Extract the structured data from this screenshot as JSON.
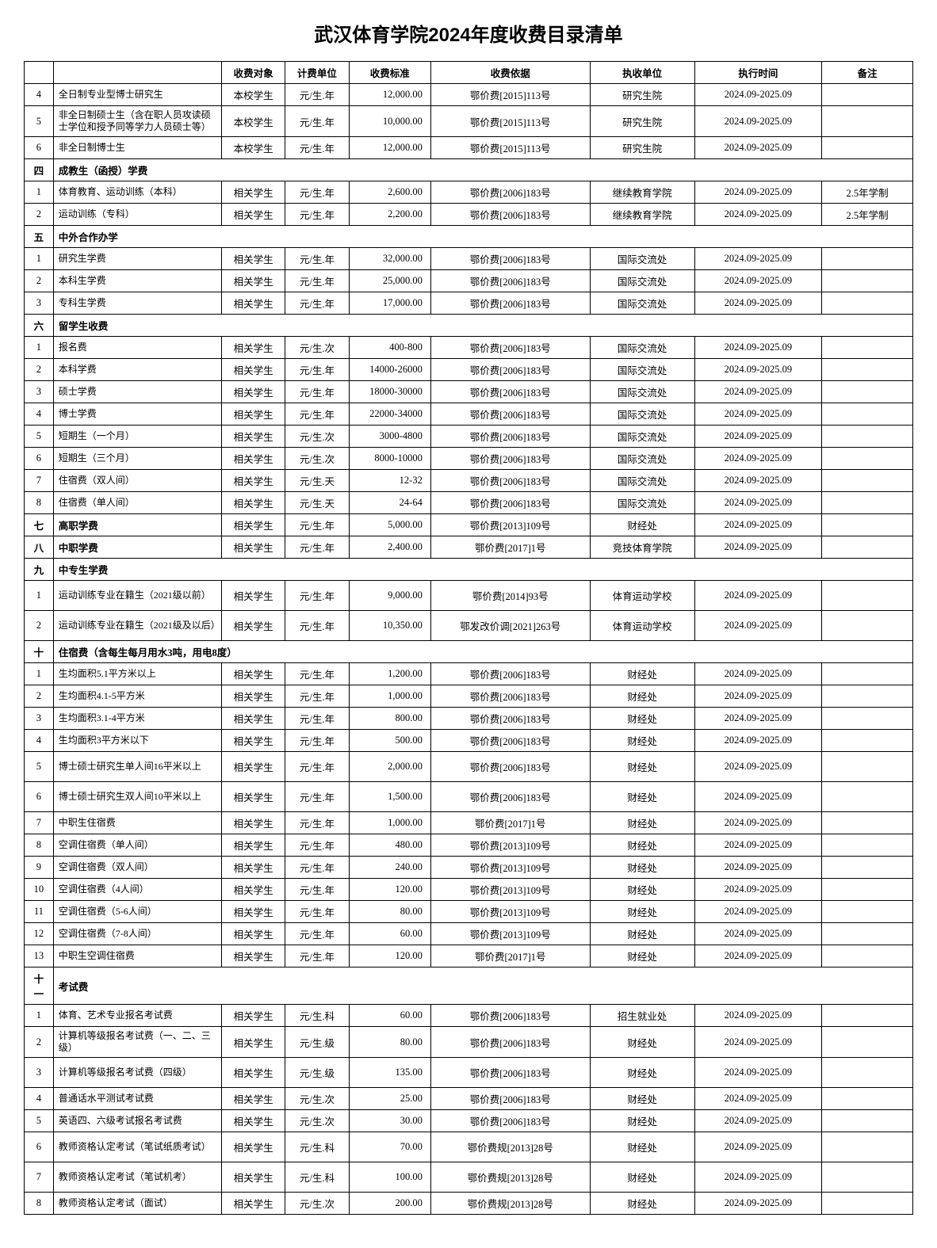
{
  "title": "武汉体育学院2024年度收费目录清单",
  "headers": {
    "idx": "",
    "name": "",
    "obj": "收费对象",
    "unit": "计费单位",
    "price": "收费标准",
    "basis": "收费依据",
    "dept": "执收单位",
    "time": "执行时间",
    "note": "备注"
  },
  "rows": [
    {
      "type": "data",
      "idx": "4",
      "name": "全日制专业型博士研究生",
      "obj": "本校学生",
      "unit": "元/生.年",
      "price": "12,000.00",
      "basis": "鄂价费[2015]113号",
      "dept": "研究生院",
      "time": "2024.09-2025.09",
      "note": ""
    },
    {
      "type": "data",
      "idx": "5",
      "name": "非全日制硕士生（含在职人员攻读硕士学位和授予同等学力人员硕士等）",
      "obj": "本校学生",
      "unit": "元/生.年",
      "price": "10,000.00",
      "basis": "鄂价费[2015]113号",
      "dept": "研究生院",
      "time": "2024.09-2025.09",
      "note": "",
      "tall": true
    },
    {
      "type": "data",
      "idx": "6",
      "name": "非全日制博士生",
      "obj": "本校学生",
      "unit": "元/生.年",
      "price": "12,000.00",
      "basis": "鄂价费[2015]113号",
      "dept": "研究生院",
      "time": "2024.09-2025.09",
      "note": ""
    },
    {
      "type": "section",
      "idx": "四",
      "label": "成教生（函授）学费"
    },
    {
      "type": "data",
      "idx": "1",
      "name": "体育教育、运动训练（本科）",
      "obj": "相关学生",
      "unit": "元/生.年",
      "price": "2,600.00",
      "basis": "鄂价费[2006]183号",
      "dept": "继续教育学院",
      "time": "2024.09-2025.09",
      "note": "2.5年学制"
    },
    {
      "type": "data",
      "idx": "2",
      "name": "运动训练（专科）",
      "obj": "相关学生",
      "unit": "元/生.年",
      "price": "2,200.00",
      "basis": "鄂价费[2006]183号",
      "dept": "继续教育学院",
      "time": "2024.09-2025.09",
      "note": "2.5年学制"
    },
    {
      "type": "section",
      "idx": "五",
      "label": "中外合作办学"
    },
    {
      "type": "data",
      "idx": "1",
      "name": "研究生学费",
      "obj": "相关学生",
      "unit": "元/生.年",
      "price": "32,000.00",
      "basis": "鄂价费[2006]183号",
      "dept": "国际交流处",
      "time": "2024.09-2025.09",
      "note": ""
    },
    {
      "type": "data",
      "idx": "2",
      "name": "本科生学费",
      "obj": "相关学生",
      "unit": "元/生.年",
      "price": "25,000.00",
      "basis": "鄂价费[2006]183号",
      "dept": "国际交流处",
      "time": "2024.09-2025.09",
      "note": ""
    },
    {
      "type": "data",
      "idx": "3",
      "name": "专科生学费",
      "obj": "相关学生",
      "unit": "元/生.年",
      "price": "17,000.00",
      "basis": "鄂价费[2006]183号",
      "dept": "国际交流处",
      "time": "2024.09-2025.09",
      "note": ""
    },
    {
      "type": "section",
      "idx": "六",
      "label": "留学生收费"
    },
    {
      "type": "data",
      "idx": "1",
      "name": "报名费",
      "obj": "相关学生",
      "unit": "元/生.次",
      "price": "400-800",
      "basis": "鄂价费[2006]183号",
      "dept": "国际交流处",
      "time": "2024.09-2025.09",
      "note": ""
    },
    {
      "type": "data",
      "idx": "2",
      "name": "本科学费",
      "obj": "相关学生",
      "unit": "元/生.年",
      "price": "14000-26000",
      "basis": "鄂价费[2006]183号",
      "dept": "国际交流处",
      "time": "2024.09-2025.09",
      "note": ""
    },
    {
      "type": "data",
      "idx": "3",
      "name": "硕士学费",
      "obj": "相关学生",
      "unit": "元/生.年",
      "price": "18000-30000",
      "basis": "鄂价费[2006]183号",
      "dept": "国际交流处",
      "time": "2024.09-2025.09",
      "note": ""
    },
    {
      "type": "data",
      "idx": "4",
      "name": "博士学费",
      "obj": "相关学生",
      "unit": "元/生.年",
      "price": "22000-34000",
      "basis": "鄂价费[2006]183号",
      "dept": "国际交流处",
      "time": "2024.09-2025.09",
      "note": ""
    },
    {
      "type": "data",
      "idx": "5",
      "name": "短期生（一个月）",
      "obj": "相关学生",
      "unit": "元/生.次",
      "price": "3000-4800",
      "basis": "鄂价费[2006]183号",
      "dept": "国际交流处",
      "time": "2024.09-2025.09",
      "note": ""
    },
    {
      "type": "data",
      "idx": "6",
      "name": "短期生（三个月）",
      "obj": "相关学生",
      "unit": "元/生.次",
      "price": "8000-10000",
      "basis": "鄂价费[2006]183号",
      "dept": "国际交流处",
      "time": "2024.09-2025.09",
      "note": ""
    },
    {
      "type": "data",
      "idx": "7",
      "name": "住宿费（双人间）",
      "obj": "相关学生",
      "unit": "元/生.天",
      "price": "12-32",
      "basis": "鄂价费[2006]183号",
      "dept": "国际交流处",
      "time": "2024.09-2025.09",
      "note": ""
    },
    {
      "type": "data",
      "idx": "8",
      "name": "住宿费（单人间）",
      "obj": "相关学生",
      "unit": "元/生.天",
      "price": "24-64",
      "basis": "鄂价费[2006]183号",
      "dept": "国际交流处",
      "time": "2024.09-2025.09",
      "note": ""
    },
    {
      "type": "section-inline",
      "idx": "七",
      "label": "高职学费",
      "obj": "相关学生",
      "unit": "元/生.年",
      "price": "5,000.00",
      "basis": "鄂价费[2013]109号",
      "dept": "财经处",
      "time": "2024.09-2025.09",
      "note": ""
    },
    {
      "type": "section-inline",
      "idx": "八",
      "label": "中职学费",
      "obj": "相关学生",
      "unit": "元/生.年",
      "price": "2,400.00",
      "basis": "鄂价费[2017]1号",
      "dept": "竞技体育学院",
      "time": "2024.09-2025.09",
      "note": ""
    },
    {
      "type": "section",
      "idx": "九",
      "label": "中专生学费"
    },
    {
      "type": "data",
      "idx": "1",
      "name": "运动训练专业在籍生（2021级以前）",
      "obj": "相关学生",
      "unit": "元/生.年",
      "price": "9,000.00",
      "basis": "鄂价费[2014]93号",
      "dept": "体育运动学校",
      "time": "2024.09-2025.09",
      "note": "",
      "tall": true
    },
    {
      "type": "data",
      "idx": "2",
      "name": "运动训练专业在籍生（2021级及以后）",
      "obj": "相关学生",
      "unit": "元/生.年",
      "price": "10,350.00",
      "basis": "鄂发改价调[2021]263号",
      "dept": "体育运动学校",
      "time": "2024.09-2025.09",
      "note": "",
      "tall": true
    },
    {
      "type": "section",
      "idx": "十",
      "label": "住宿费（含每生每月用水3吨，用电8度）"
    },
    {
      "type": "data",
      "idx": "1",
      "name": "生均面积5.1平方米以上",
      "obj": "相关学生",
      "unit": "元/生.年",
      "price": "1,200.00",
      "basis": "鄂价费[2006]183号",
      "dept": "财经处",
      "time": "2024.09-2025.09",
      "note": ""
    },
    {
      "type": "data",
      "idx": "2",
      "name": "生均面积4.1-5平方米",
      "obj": "相关学生",
      "unit": "元/生.年",
      "price": "1,000.00",
      "basis": "鄂价费[2006]183号",
      "dept": "财经处",
      "time": "2024.09-2025.09",
      "note": ""
    },
    {
      "type": "data",
      "idx": "3",
      "name": "生均面积3.1-4平方米",
      "obj": "相关学生",
      "unit": "元/生.年",
      "price": "800.00",
      "basis": "鄂价费[2006]183号",
      "dept": "财经处",
      "time": "2024.09-2025.09",
      "note": ""
    },
    {
      "type": "data",
      "idx": "4",
      "name": "生均面积3平方米以下",
      "obj": "相关学生",
      "unit": "元/生.年",
      "price": "500.00",
      "basis": "鄂价费[2006]183号",
      "dept": "财经处",
      "time": "2024.09-2025.09",
      "note": ""
    },
    {
      "type": "data",
      "idx": "5",
      "name": "博士硕士研究生单人间16平米以上",
      "obj": "相关学生",
      "unit": "元/生.年",
      "price": "2,000.00",
      "basis": "鄂价费[2006]183号",
      "dept": "财经处",
      "time": "2024.09-2025.09",
      "note": "",
      "tall": true
    },
    {
      "type": "data",
      "idx": "6",
      "name": "博士硕士研究生双人间10平米以上",
      "obj": "相关学生",
      "unit": "元/生.年",
      "price": "1,500.00",
      "basis": "鄂价费[2006]183号",
      "dept": "财经处",
      "time": "2024.09-2025.09",
      "note": "",
      "tall": true
    },
    {
      "type": "data",
      "idx": "7",
      "name": "中职生住宿费",
      "obj": "相关学生",
      "unit": "元/生.年",
      "price": "1,000.00",
      "basis": "鄂价费[2017]1号",
      "dept": "财经处",
      "time": "2024.09-2025.09",
      "note": ""
    },
    {
      "type": "data",
      "idx": "8",
      "name": "空调住宿费（单人间）",
      "obj": "相关学生",
      "unit": "元/生.年",
      "price": "480.00",
      "basis": "鄂价费[2013]109号",
      "dept": "财经处",
      "time": "2024.09-2025.09",
      "note": ""
    },
    {
      "type": "data",
      "idx": "9",
      "name": "空调住宿费（双人间）",
      "obj": "相关学生",
      "unit": "元/生.年",
      "price": "240.00",
      "basis": "鄂价费[2013]109号",
      "dept": "财经处",
      "time": "2024.09-2025.09",
      "note": ""
    },
    {
      "type": "data",
      "idx": "10",
      "name": "空调住宿费（4人间）",
      "obj": "相关学生",
      "unit": "元/生.年",
      "price": "120.00",
      "basis": "鄂价费[2013]109号",
      "dept": "财经处",
      "time": "2024.09-2025.09",
      "note": ""
    },
    {
      "type": "data",
      "idx": "11",
      "name": "空调住宿费（5-6人间）",
      "obj": "相关学生",
      "unit": "元/生.年",
      "price": "80.00",
      "basis": "鄂价费[2013]109号",
      "dept": "财经处",
      "time": "2024.09-2025.09",
      "note": ""
    },
    {
      "type": "data",
      "idx": "12",
      "name": "空调住宿费（7-8人间）",
      "obj": "相关学生",
      "unit": "元/生.年",
      "price": "60.00",
      "basis": "鄂价费[2013]109号",
      "dept": "财经处",
      "time": "2024.09-2025.09",
      "note": ""
    },
    {
      "type": "data",
      "idx": "13",
      "name": "中职生空调住宿费",
      "obj": "相关学生",
      "unit": "元/生.年",
      "price": "120.00",
      "basis": "鄂价费[2017]1号",
      "dept": "财经处",
      "time": "2024.09-2025.09",
      "note": ""
    },
    {
      "type": "section",
      "idx": "十一",
      "label": "考试费"
    },
    {
      "type": "data",
      "idx": "1",
      "name": "体育、艺术专业报名考试费",
      "obj": "相关学生",
      "unit": "元/生.科",
      "price": "60.00",
      "basis": "鄂价费[2006]183号",
      "dept": "招生就业处",
      "time": "2024.09-2025.09",
      "note": ""
    },
    {
      "type": "data",
      "idx": "2",
      "name": "计算机等级报名考试费（一、二、三级）",
      "obj": "相关学生",
      "unit": "元/生.级",
      "price": "80.00",
      "basis": "鄂价费[2006]183号",
      "dept": "财经处",
      "time": "2024.09-2025.09",
      "note": "",
      "tall": true
    },
    {
      "type": "data",
      "idx": "3",
      "name": "计算机等级报名考试费（四级）",
      "obj": "相关学生",
      "unit": "元/生.级",
      "price": "135.00",
      "basis": "鄂价费[2006]183号",
      "dept": "财经处",
      "time": "2024.09-2025.09",
      "note": "",
      "tall": true
    },
    {
      "type": "data",
      "idx": "4",
      "name": "普通话水平测试考试费",
      "obj": "相关学生",
      "unit": "元/生.次",
      "price": "25.00",
      "basis": "鄂价费[2006]183号",
      "dept": "财经处",
      "time": "2024.09-2025.09",
      "note": ""
    },
    {
      "type": "data",
      "idx": "5",
      "name": "英语四、六级考试报名考试费",
      "obj": "相关学生",
      "unit": "元/生.次",
      "price": "30.00",
      "basis": "鄂价费[2006]183号",
      "dept": "财经处",
      "time": "2024.09-2025.09",
      "note": ""
    },
    {
      "type": "data",
      "idx": "6",
      "name": "教师资格认定考试（笔试纸质考试）",
      "obj": "相关学生",
      "unit": "元/生.科",
      "price": "70.00",
      "basis": "鄂价费规[2013]28号",
      "dept": "财经处",
      "time": "2024.09-2025.09",
      "note": "",
      "tall": true
    },
    {
      "type": "data",
      "idx": "7",
      "name": "教师资格认定考试（笔试机考）",
      "obj": "相关学生",
      "unit": "元/生.科",
      "price": "100.00",
      "basis": "鄂价费规[2013]28号",
      "dept": "财经处",
      "time": "2024.09-2025.09",
      "note": "",
      "tall": true
    },
    {
      "type": "data",
      "idx": "8",
      "name": "教师资格认定考试（面试）",
      "obj": "相关学生",
      "unit": "元/生.次",
      "price": "200.00",
      "basis": "鄂价费规[2013]28号",
      "dept": "财经处",
      "time": "2024.09-2025.09",
      "note": ""
    }
  ]
}
